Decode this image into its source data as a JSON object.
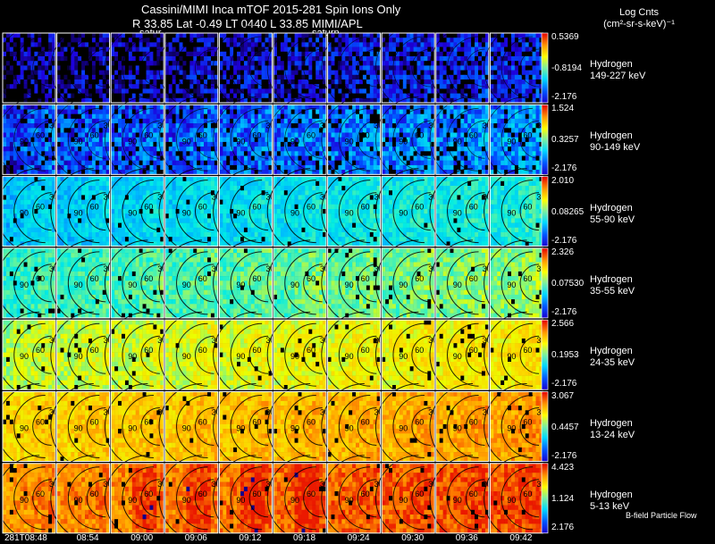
{
  "header": {
    "line1": "Cassini/MIMI Inca mTOF  2015-281    Spin    Ions Only",
    "line2": "R         33.85 Lat -0.49 LT 0440 L         33.85  MIMI/APL",
    "saturn_1": "satur",
    "saturn_2": "saturn",
    "units_1": "Log Cnts",
    "units_2": "(cm²-sr-s-keV)⁻¹",
    "footer_note": "B-field Particle Flow"
  },
  "times": [
    "281T08:48",
    "08:54",
    "09:00",
    "09:06",
    "09:12",
    "09:18",
    "09:24",
    "09:30",
    "09:36",
    "09:42"
  ],
  "rows": [
    {
      "name": "Hydrogen",
      "energy": "149-227 keV",
      "max": "0.5369",
      "mid": "-0.8194",
      "min": "-2.176"
    },
    {
      "name": "Hydrogen",
      "energy": "90-149 keV",
      "max": "1.524",
      "mid": "0.3257",
      "min": "-2.176"
    },
    {
      "name": "Hydrogen",
      "energy": "55-90 keV",
      "max": "2.010",
      "mid": "0.08265",
      "min": "-2.176"
    },
    {
      "name": "Hydrogen",
      "energy": "35-55 keV",
      "max": "2.326",
      "mid": "0.07530",
      "min": "-2.176"
    },
    {
      "name": "Hydrogen",
      "energy": "24-35 keV",
      "max": "2.566",
      "mid": "0.1953",
      "min": "-2.176"
    },
    {
      "name": "Hydrogen",
      "energy": "13-24 keV",
      "max": "3.067",
      "mid": "0.4457",
      "min": "-2.176"
    },
    {
      "name": "Hydrogen",
      "energy": "5-13 keV",
      "max": "4.423",
      "mid": "1.124",
      "min": "2.176"
    }
  ],
  "contour_labels": [
    "90",
    "60",
    "30",
    "120"
  ],
  "chart_data": {
    "type": "heatmap",
    "title": "Cassini/MIMI Inca mTOF  2015-281    Spin    Ions Only",
    "x_tick_labels": [
      "281T08:48",
      "08:54",
      "09:00",
      "09:06",
      "09:12",
      "09:18",
      "09:24",
      "09:30",
      "09:36",
      "09:42"
    ],
    "series": [
      {
        "name": "Hydrogen 149-227 keV",
        "range": [
          -2.176,
          0.5369
        ],
        "mid": -0.8194,
        "relative_level": 0.1
      },
      {
        "name": "Hydrogen 90-149 keV",
        "range": [
          -2.176,
          1.524
        ],
        "mid": 0.3257,
        "relative_level": 0.2
      },
      {
        "name": "Hydrogen 55-90 keV",
        "range": [
          -2.176,
          2.01
        ],
        "mid": 0.08265,
        "relative_level": 0.36
      },
      {
        "name": "Hydrogen 35-55 keV",
        "range": [
          -2.176,
          2.326
        ],
        "mid": 0.0753,
        "relative_level": 0.48
      },
      {
        "name": "Hydrogen 24-35 keV",
        "range": [
          -2.176,
          2.566
        ],
        "mid": 0.1953,
        "relative_level": 0.62
      },
      {
        "name": "Hydrogen 13-24 keV",
        "range": [
          -2.176,
          3.067
        ],
        "mid": 0.4457,
        "relative_level": 0.75
      },
      {
        "name": "Hydrogen 5-13 keV",
        "range": [
          2.176,
          4.423
        ],
        "mid": 1.124,
        "relative_level": 0.86
      }
    ],
    "legend": "right",
    "grid": true
  }
}
